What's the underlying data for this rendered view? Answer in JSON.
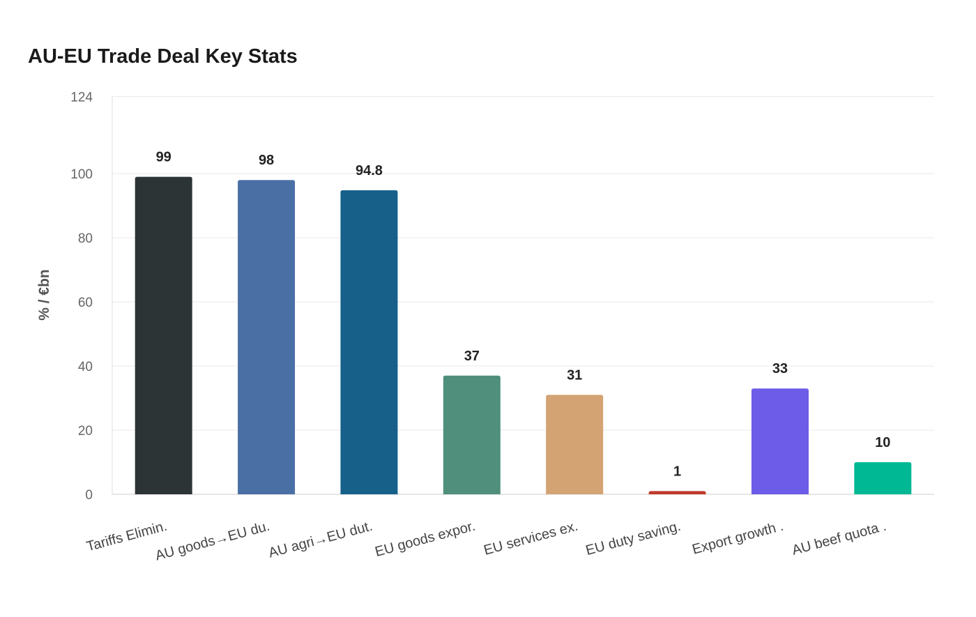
{
  "chart_data": {
    "type": "bar",
    "title": "AU-EU Trade Deal Key Stats",
    "xlabel": "",
    "ylabel": "% / €bn",
    "ylim": [
      0,
      124
    ],
    "yticks": [
      0,
      20,
      40,
      60,
      80,
      100,
      124
    ],
    "grid": true,
    "categories": [
      "Tariffs Elimin.",
      "AU goods→EU du.",
      "AU agri→EU dut.",
      "EU goods expor.",
      "EU services ex.",
      "EU duty saving.",
      "Export growth .",
      "AU beef quota ."
    ],
    "values": [
      99,
      98,
      94.8,
      37,
      31,
      1,
      33,
      10
    ],
    "value_labels": [
      "99",
      "98",
      "94.8",
      "37",
      "31",
      "1",
      "33",
      "10"
    ],
    "colors": [
      "#2d3436",
      "#4a6fa5",
      "#17608a",
      "#4f8f7c",
      "#d4a373",
      "#c0392b",
      "#6c5ce7",
      "#00b894"
    ]
  }
}
